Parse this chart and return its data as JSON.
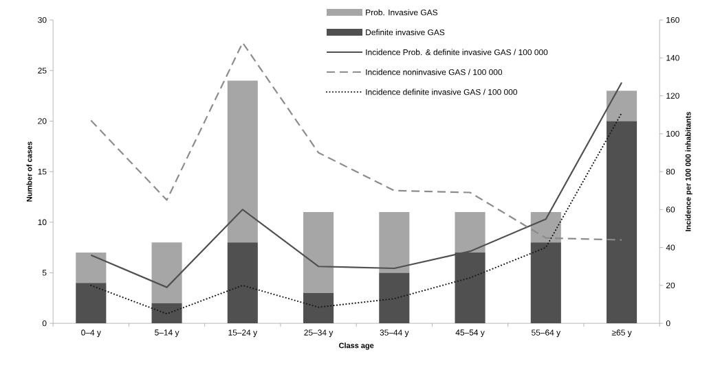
{
  "chart_data": {
    "type": "bar",
    "stacked": true,
    "legend": "top right",
    "xlabel": "Class age",
    "ylabel": "Number of cases",
    "y2label": "Incidence per 100 000 inhabitants",
    "categories": [
      "0–4 y",
      "5–14 y",
      "15–24 y",
      "25–34 y",
      "35–44 y",
      "45–54 y",
      "55–64 y",
      "≥65 y"
    ],
    "ylim": [
      0,
      30
    ],
    "yticks": [
      0,
      5,
      10,
      15,
      20,
      25,
      30
    ],
    "y2lim": [
      0,
      160
    ],
    "y2ticks": [
      0,
      20,
      40,
      60,
      80,
      100,
      120,
      140,
      160
    ],
    "series": [
      {
        "name": "Definite invasive GAS",
        "type": "bar",
        "color": "#505050",
        "values": [
          4,
          2,
          8,
          3,
          5,
          7,
          8,
          20
        ]
      },
      {
        "name": "Prob. Invasive GAS",
        "type": "bar",
        "color": "#a6a6a6",
        "values": [
          3,
          6,
          16,
          8,
          6,
          4,
          3,
          3
        ]
      },
      {
        "name": "Incidence Prob. & definite invasive GAS / 100 000",
        "type": "line",
        "axis": "y2",
        "line_style": "solid",
        "color": "#505050",
        "values": [
          36,
          19,
          60,
          30,
          29,
          38,
          55,
          127
        ]
      },
      {
        "name": "Incidence noninvasive GAS / 100 000",
        "type": "line",
        "axis": "y2",
        "line_style": "dashed",
        "color": "#8c8c8c",
        "values": [
          107,
          65,
          148,
          90,
          70,
          69,
          45,
          44
        ]
      },
      {
        "name": "Incidence definite invasive GAS / 100 000",
        "type": "line",
        "axis": "y2",
        "line_style": "dotted",
        "color": "#1a1a1a",
        "values": [
          20,
          5,
          20,
          8.5,
          13,
          24,
          40,
          111
        ]
      }
    ]
  }
}
